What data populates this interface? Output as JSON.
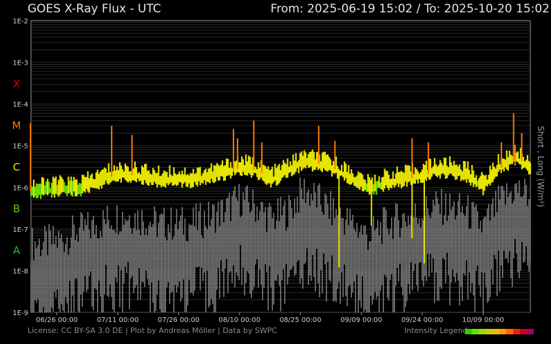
{
  "header": {
    "title": "GOES X-Ray Flux - UTC",
    "range_label": "From: 2025-06-19 15:02  /  To: 2025-10-20 15:02"
  },
  "footer": {
    "credits": "License: CC BY-SA 3.0 DE | Plot by Andreas Möller | Data by SWPC",
    "legend_label": "Intensity Legend"
  },
  "colors": {
    "background": "#000000",
    "grid": "#3a3a3a",
    "long_low": "#66dd00",
    "long_mid": "#e6e600",
    "long_high": "#ff7a00",
    "short": "#8a8a8a",
    "class_X": "#e00000",
    "class_M": "#ff7a00",
    "class_C": "#e6e600",
    "class_B": "#66cc00",
    "class_A": "#22bb22"
  },
  "intensity_legend_colors": [
    "#33cc00",
    "#66dd00",
    "#99dd00",
    "#cccc00",
    "#e6c000",
    "#ff9900",
    "#ff6600",
    "#ee2200",
    "#cc0033",
    "#aa0066"
  ],
  "chart_data": {
    "type": "line",
    "y_scale": "log",
    "ylim": [
      1e-09,
      0.01
    ],
    "y_ticks": [
      "1E-2",
      "1E-3",
      "1E-4",
      "1E-5",
      "1E-6",
      "1E-7",
      "1E-8",
      "1E-9"
    ],
    "ylabel": "Short , Long (W/m²)",
    "flare_classes": [
      "X",
      "M",
      "C",
      "B",
      "A"
    ],
    "x_start": "2025-06-19 15:02",
    "x_end": "2025-10-20 15:02",
    "x_ticks": [
      "06/26 00:00",
      "07/11 00:00",
      "07/26 00:00",
      "08/10 00:00",
      "08/25 00:00",
      "09/09 00:00",
      "09/24 00:00",
      "10/09 00:00"
    ],
    "grid": true,
    "series": [
      {
        "name": "Long",
        "dates": [
          "2025-06-19",
          "2025-06-23",
          "2025-06-27",
          "2025-07-01",
          "2025-07-05",
          "2025-07-09",
          "2025-07-13",
          "2025-07-17",
          "2025-07-21",
          "2025-07-25",
          "2025-07-29",
          "2025-08-02",
          "2025-08-06",
          "2025-08-10",
          "2025-08-14",
          "2025-08-18",
          "2025-08-22",
          "2025-08-26",
          "2025-08-30",
          "2025-09-03",
          "2025-09-07",
          "2025-09-11",
          "2025-09-15",
          "2025-09-19",
          "2025-09-23",
          "2025-09-27",
          "2025-10-01",
          "2025-10-05",
          "2025-10-09",
          "2025-10-13",
          "2025-10-17",
          "2025-10-20"
        ],
        "values": [
          8e-07,
          8e-07,
          9e-07,
          9e-07,
          1.2e-06,
          1.8e-06,
          2e-06,
          1.8e-06,
          1.5e-06,
          1.6e-06,
          1.5e-06,
          1.7e-06,
          2.2e-06,
          3e-06,
          2.5e-06,
          1.5e-06,
          2.5e-06,
          4e-06,
          3.5e-06,
          2.5e-06,
          1.5e-06,
          9e-07,
          1.3e-06,
          1.5e-06,
          1.8e-06,
          2.5e-06,
          2.5e-06,
          2e-06,
          1e-06,
          3e-06,
          5e-06,
          3e-06
        ],
        "peaks": [
          {
            "date": "2025-06-19",
            "value": 3.5e-05
          },
          {
            "date": "2025-07-09",
            "value": 3e-05
          },
          {
            "date": "2025-07-14",
            "value": 1.8e-05
          },
          {
            "date": "2025-08-08",
            "value": 2.5e-05
          },
          {
            "date": "2025-08-09",
            "value": 1.5e-05
          },
          {
            "date": "2025-08-13",
            "value": 4e-05
          },
          {
            "date": "2025-08-15",
            "value": 1.2e-05
          },
          {
            "date": "2025-08-29",
            "value": 3e-05
          },
          {
            "date": "2025-09-02",
            "value": 1.3e-05
          },
          {
            "date": "2025-09-21",
            "value": 1.5e-05
          },
          {
            "date": "2025-09-25",
            "value": 1.2e-05
          },
          {
            "date": "2025-10-13",
            "value": 1.2e-05
          },
          {
            "date": "2025-10-16",
            "value": 6e-05
          },
          {
            "date": "2025-10-18",
            "value": 2e-05
          }
        ],
        "dips": [
          {
            "date": "2025-09-03",
            "value": 1.2e-08
          },
          {
            "date": "2025-09-11",
            "value": 1.2e-07
          },
          {
            "date": "2025-09-21",
            "value": 6e-08
          },
          {
            "date": "2025-09-24",
            "value": 1.5e-08
          }
        ]
      },
      {
        "name": "Short",
        "dates": [
          "2025-06-19",
          "2025-06-23",
          "2025-06-27",
          "2025-07-01",
          "2025-07-05",
          "2025-07-09",
          "2025-07-13",
          "2025-07-17",
          "2025-07-21",
          "2025-07-25",
          "2025-07-29",
          "2025-08-02",
          "2025-08-06",
          "2025-08-10",
          "2025-08-14",
          "2025-08-18",
          "2025-08-22",
          "2025-08-26",
          "2025-08-30",
          "2025-09-03",
          "2025-09-07",
          "2025-09-11",
          "2025-09-15",
          "2025-09-19",
          "2025-09-23",
          "2025-09-27",
          "2025-10-01",
          "2025-10-05",
          "2025-10-09",
          "2025-10-13",
          "2025-10-17",
          "2025-10-20"
        ],
        "values": [
          1e-08,
          1e-08,
          1.2e-08,
          2e-08,
          2.5e-08,
          4e-08,
          5e-08,
          4e-08,
          3e-08,
          3e-08,
          3e-08,
          4e-08,
          6e-08,
          1.2e-07,
          8e-08,
          4e-08,
          6e-08,
          2e-07,
          1e-07,
          5e-08,
          3e-08,
          1.5e-08,
          3e-08,
          4e-08,
          5e-08,
          8e-08,
          7e-08,
          6e-08,
          2.5e-08,
          1e-07,
          2e-07,
          1.5e-07
        ]
      }
    ]
  }
}
